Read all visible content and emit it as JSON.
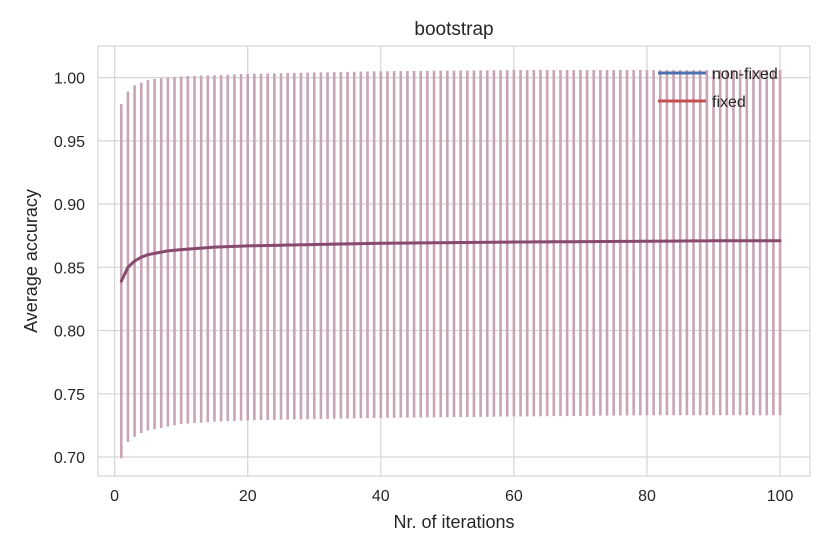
{
  "chart_data": {
    "type": "line",
    "title": "bootstrap",
    "xlabel": "Nr. of iterations",
    "ylabel": "Average accuracy",
    "xlim": [
      -2.5,
      104.5
    ],
    "ylim": [
      0.685,
      1.025
    ],
    "xticks": [
      0,
      20,
      40,
      60,
      80,
      100
    ],
    "xtick_labels": [
      "0",
      "20",
      "40",
      "60",
      "80",
      "100"
    ],
    "yticks": [
      0.7,
      0.75,
      0.8,
      0.85,
      0.9,
      0.95,
      1.0
    ],
    "ytick_labels": [
      "0.70",
      "0.75",
      "0.80",
      "0.85",
      "0.90",
      "0.95",
      "1.00"
    ],
    "grid": true,
    "legend_position": "top-right",
    "x_start": 1,
    "x_end": 100,
    "mean_curve": {
      "x": [
        1,
        2,
        3,
        4,
        5,
        6,
        8,
        10,
        15,
        20,
        30,
        40,
        50,
        60,
        70,
        80,
        90,
        100
      ],
      "y": [
        0.839,
        0.85,
        0.855,
        0.858,
        0.86,
        0.861,
        0.863,
        0.864,
        0.866,
        0.867,
        0.868,
        0.869,
        0.8695,
        0.87,
        0.8703,
        0.8706,
        0.871,
        0.871
      ]
    },
    "upper_band": {
      "x": [
        1,
        2,
        3,
        4,
        5,
        6,
        8,
        10,
        15,
        20,
        30,
        40,
        60,
        80,
        100
      ],
      "y": [
        0.979,
        0.989,
        0.994,
        0.996,
        0.998,
        0.999,
        1.0,
        1.001,
        1.002,
        1.003,
        1.004,
        1.005,
        1.006,
        1.006,
        1.006
      ]
    },
    "lower_band": {
      "x": [
        1,
        2,
        3,
        4,
        5,
        6,
        8,
        10,
        15,
        20,
        30,
        40,
        60,
        80,
        100
      ],
      "y": [
        0.699,
        0.712,
        0.716,
        0.719,
        0.721,
        0.722,
        0.724,
        0.726,
        0.728,
        0.729,
        0.73,
        0.731,
        0.732,
        0.733,
        0.733
      ]
    },
    "series": [
      {
        "name": "non-fixed",
        "color": "#4c72b0"
      },
      {
        "name": "fixed",
        "color": "#c44e52"
      }
    ],
    "overlap_color": "#87496d",
    "errorbar_color": "#c9a4b6"
  }
}
